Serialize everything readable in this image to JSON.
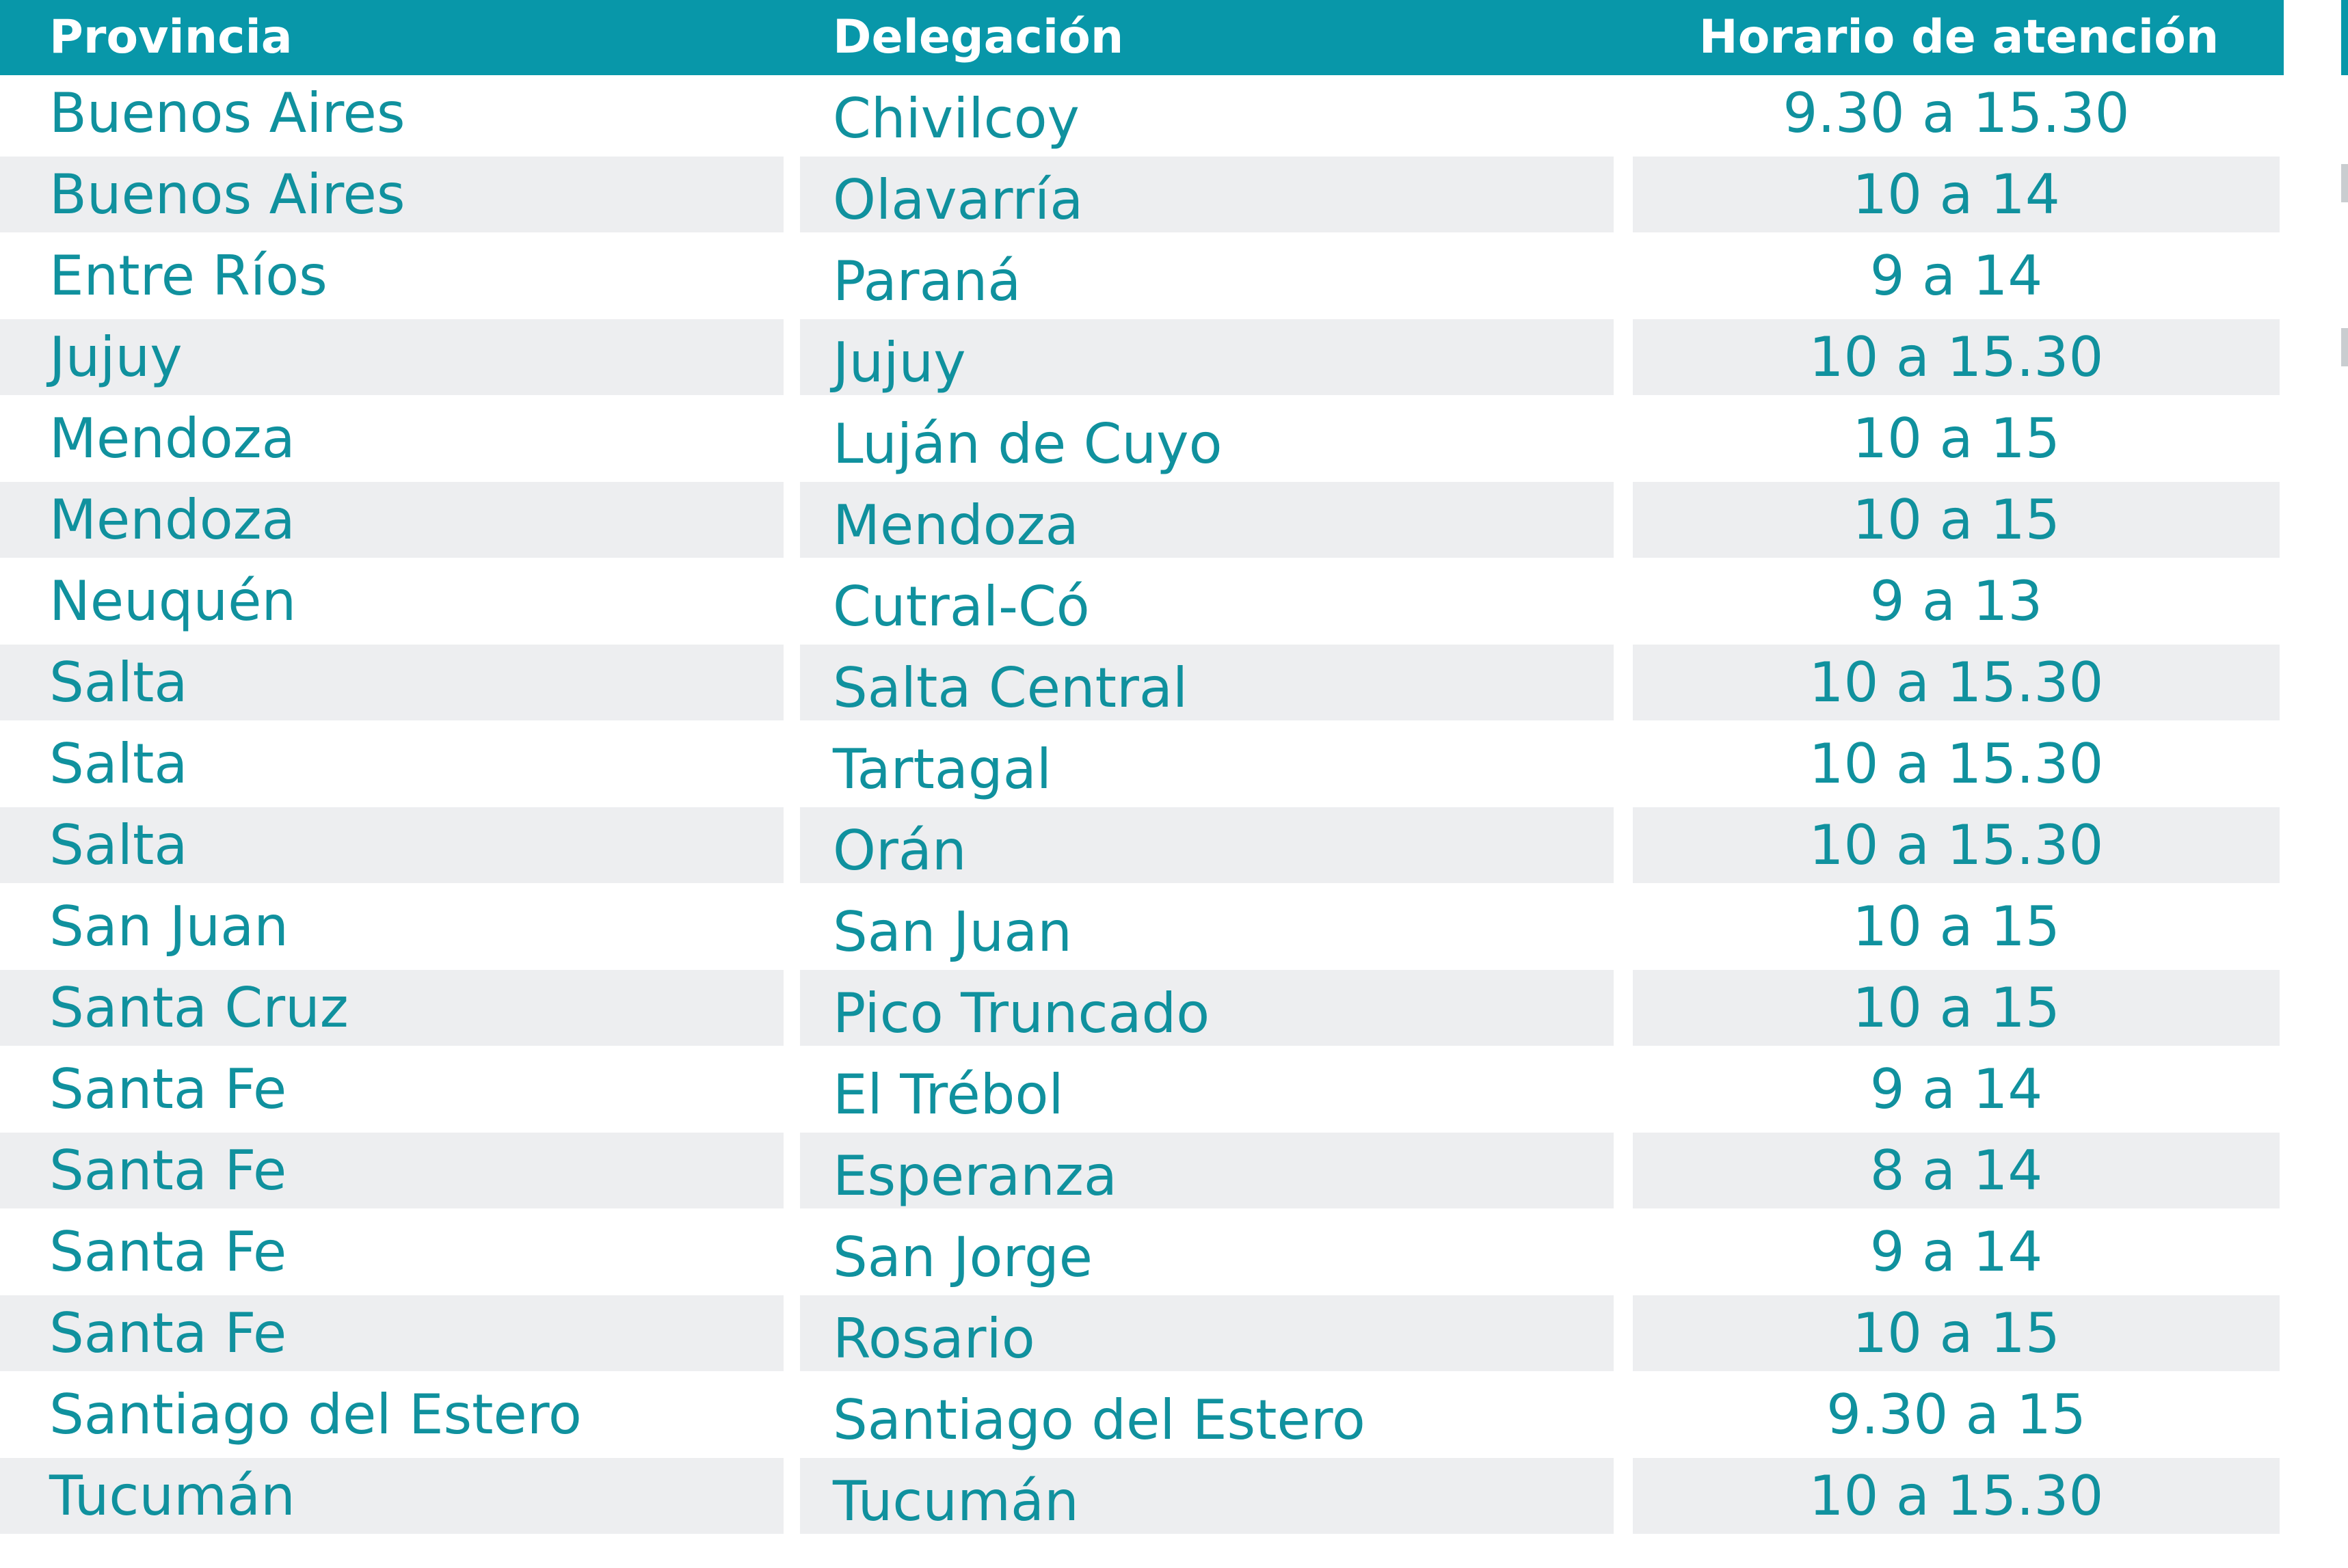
{
  "table": {
    "headers": {
      "provincia": "Provincia",
      "delegacion": "Delegación",
      "horario": "Horario de atención"
    },
    "rows": [
      {
        "provincia": "Buenos Aires",
        "delegacion": "Chivilcoy",
        "horario": "9.30 a 15.30"
      },
      {
        "provincia": "Buenos Aires",
        "delegacion": "Olavarría",
        "horario": "10 a 14"
      },
      {
        "provincia": "Entre Ríos",
        "delegacion": "Paraná",
        "horario": "9 a 14"
      },
      {
        "provincia": "Jujuy",
        "delegacion": "Jujuy",
        "horario": "10 a 15.30"
      },
      {
        "provincia": "Mendoza",
        "delegacion": "Luján de Cuyo",
        "horario": "10 a 15"
      },
      {
        "provincia": "Mendoza",
        "delegacion": "Mendoza",
        "horario": "10 a 15"
      },
      {
        "provincia": "Neuquén",
        "delegacion": "Cutral-Có",
        "horario": "9 a 13"
      },
      {
        "provincia": "Salta",
        "delegacion": "Salta Central",
        "horario": "10 a 15.30"
      },
      {
        "provincia": "Salta",
        "delegacion": "Tartagal",
        "horario": "10 a 15.30"
      },
      {
        "provincia": "Salta",
        "delegacion": "Orán",
        "horario": "10 a 15.30"
      },
      {
        "provincia": "San Juan",
        "delegacion": "San Juan",
        "horario": "10 a 15"
      },
      {
        "provincia": "Santa Cruz",
        "delegacion": "Pico Truncado",
        "horario": "10 a 15"
      },
      {
        "provincia": "Santa Fe",
        "delegacion": "El Trébol",
        "horario": "9 a 14"
      },
      {
        "provincia": "Santa Fe",
        "delegacion": "Esperanza",
        "horario": "8 a 14"
      },
      {
        "provincia": "Santa Fe",
        "delegacion": "San Jorge",
        "horario": "9 a 14"
      },
      {
        "provincia": "Santa Fe",
        "delegacion": "Rosario",
        "horario": "10 a 15"
      },
      {
        "provincia": "Santiago del Estero",
        "delegacion": "Santiago del Estero",
        "horario": "9.30 a 15"
      },
      {
        "provincia": "Tucumán",
        "delegacion": "Tucumán",
        "horario": "10 a 15.30"
      }
    ]
  },
  "colors": {
    "header_bg": "#0897A9",
    "header_text": "#FFFFFF",
    "cell_text": "#10919E",
    "stripe": "#EDEEF0"
  }
}
